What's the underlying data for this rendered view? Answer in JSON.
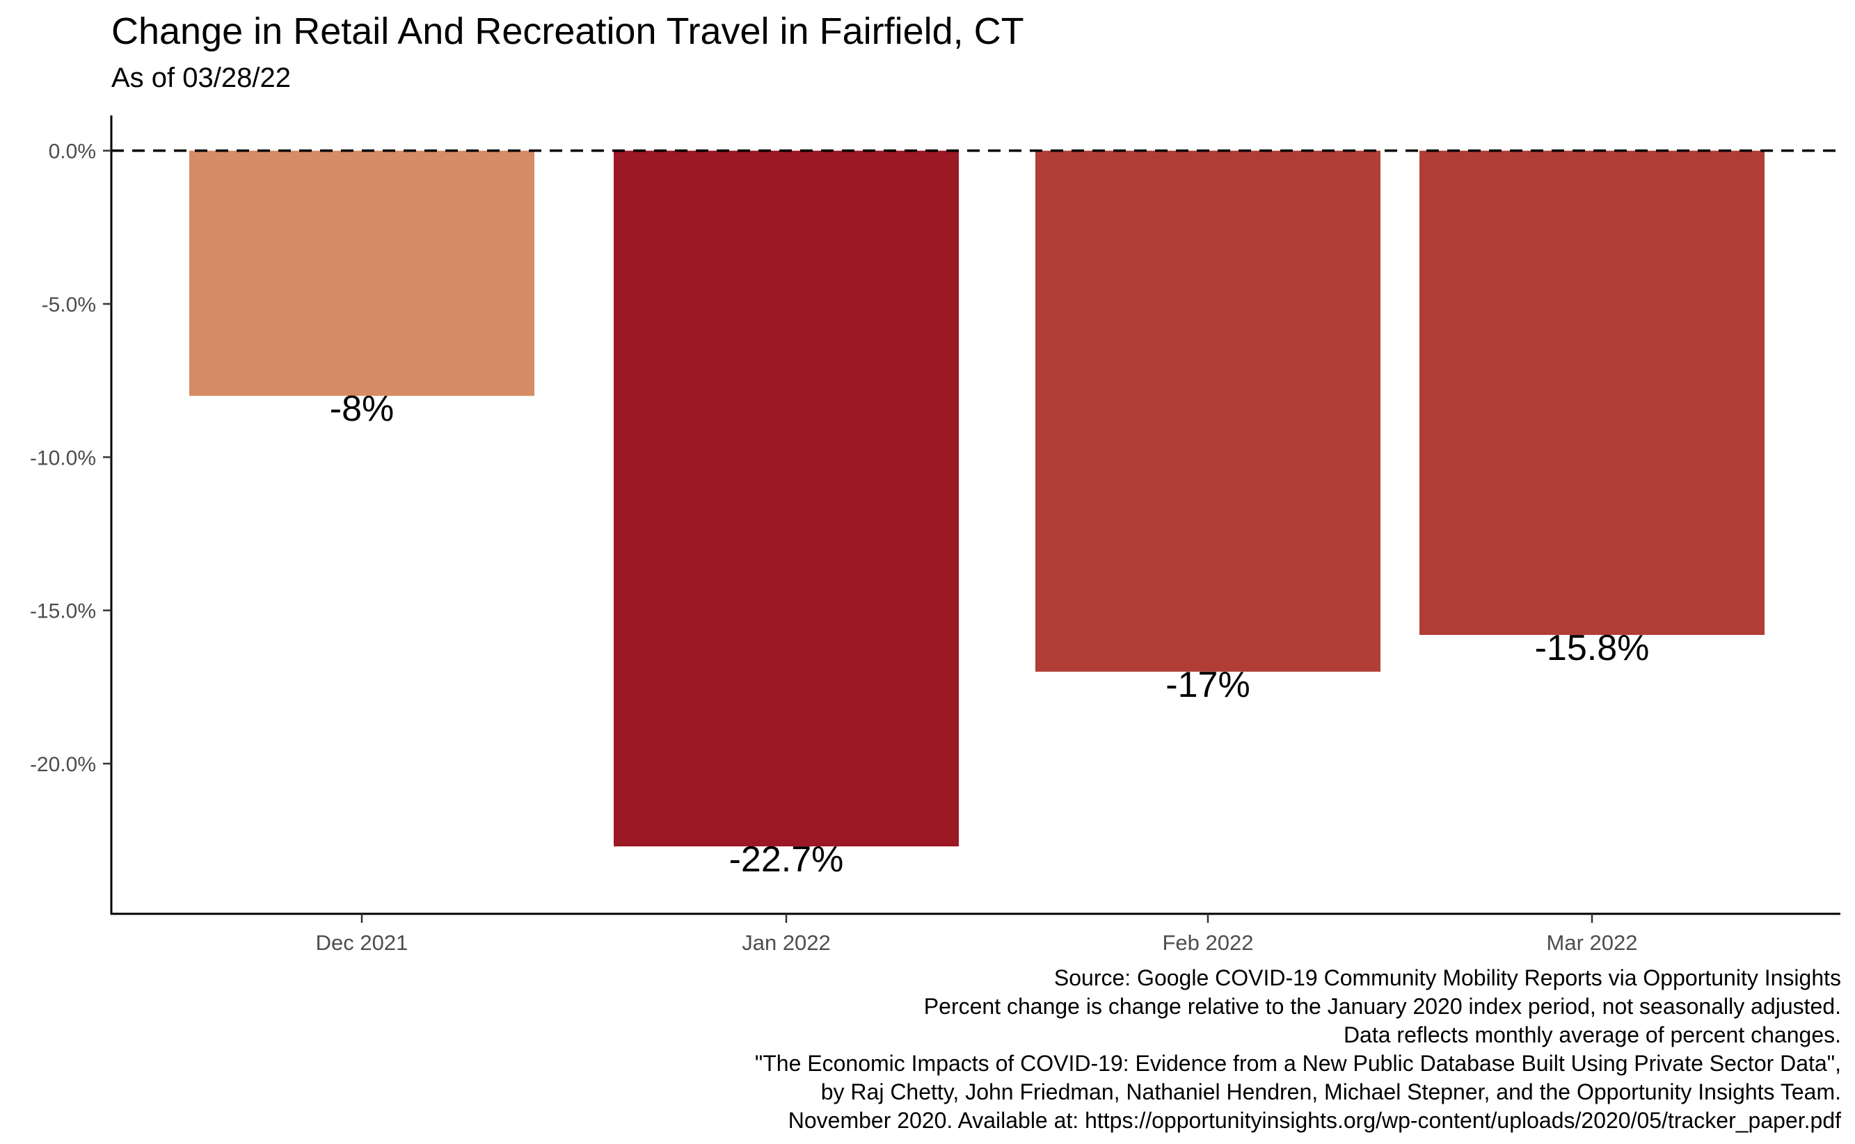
{
  "chart_data": {
    "type": "bar",
    "title": "Change in Retail And Recreation Travel in Fairfield, CT",
    "subtitle": "As of 03/28/22",
    "xlabel": "",
    "ylabel": "",
    "categories": [
      "Dec 2021",
      "Jan 2022",
      "Feb 2022",
      "Mar 2022"
    ],
    "values": [
      -8,
      -22.7,
      -17,
      -15.8
    ],
    "data_labels": [
      "-8%",
      "-22.7%",
      "-17%",
      "-15.8%"
    ],
    "bar_colors": [
      "#D68C64",
      "#9B1824",
      "#B03E36",
      "#B03E36"
    ],
    "ylim": [
      -24.9,
      1.15
    ],
    "yticks": [
      0,
      -5,
      -10,
      -15,
      -20
    ],
    "ytick_labels": [
      "0.0%",
      "-5.0%",
      "-10.0%",
      "-15.0%",
      "-20.0%"
    ],
    "reference_line": {
      "y": 0,
      "style": "dashed"
    },
    "grid": false,
    "legend": "none"
  },
  "caption": [
    "Source: Google COVID-19 Community Mobility Reports via Opportunity Insights",
    "Percent change is change relative to the January 2020 index period, not seasonally adjusted.",
    "Data reflects monthly average of percent changes.",
    "\"The Economic Impacts of COVID-19: Evidence from a New Public Database Built Using Private Sector Data\",",
    "by Raj Chetty, John Friedman, Nathaniel Hendren, Michael Stepner, and the Opportunity Insights Team.",
    "November 2020. Available at: https://opportunityinsights.org/wp-content/uploads/2020/05/tracker_paper.pdf"
  ]
}
